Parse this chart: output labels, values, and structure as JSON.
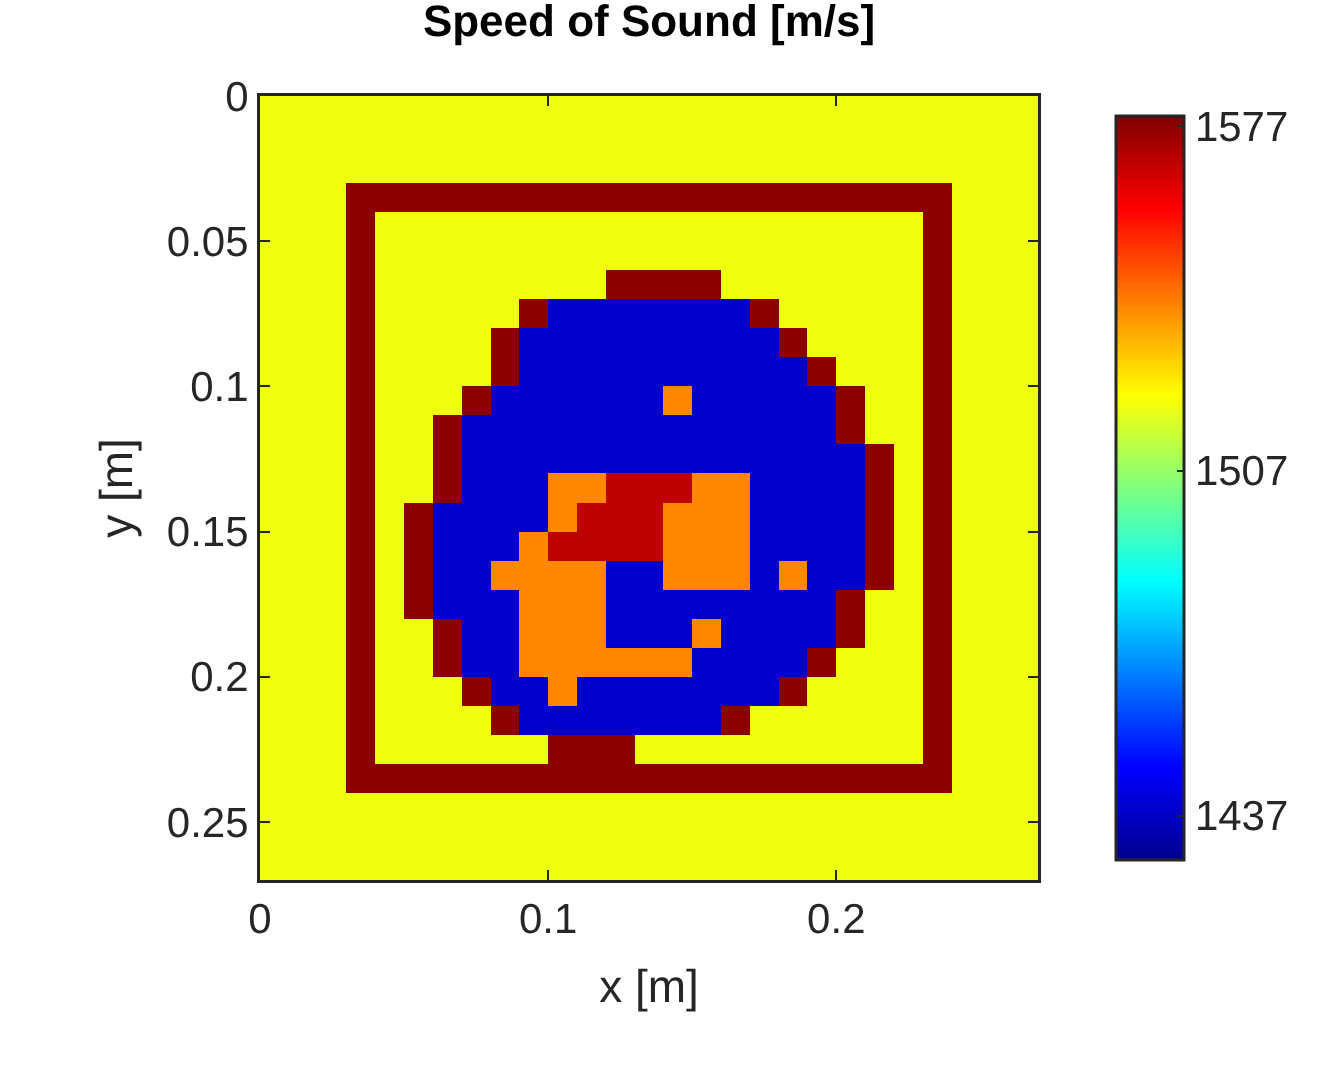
{
  "chart_data": {
    "type": "heatmap",
    "title": "Speed of Sound [m/s]",
    "xlabel": "x [m]",
    "ylabel": "y [m]",
    "x": [
      0.005,
      0.015,
      0.025,
      0.035,
      0.045,
      0.055,
      0.065,
      0.075,
      0.085,
      0.095,
      0.105,
      0.115,
      0.125,
      0.135,
      0.145,
      0.155,
      0.165,
      0.175,
      0.185,
      0.195,
      0.205,
      0.215,
      0.225,
      0.235,
      0.245,
      0.255,
      0.265
    ],
    "y": [
      0.005,
      0.015,
      0.025,
      0.035,
      0.045,
      0.055,
      0.065,
      0.075,
      0.085,
      0.095,
      0.105,
      0.115,
      0.125,
      0.135,
      0.145,
      0.155,
      0.165,
      0.175,
      0.185,
      0.195,
      0.205,
      0.215,
      0.225,
      0.235,
      0.245,
      0.255,
      0.265
    ],
    "xlim": [
      0,
      0.27
    ],
    "ylim": [
      0.27,
      0
    ],
    "xticks": [
      0,
      0.1,
      0.2
    ],
    "yticks": [
      0,
      0.05,
      0.1,
      0.15,
      0.2,
      0.25
    ],
    "clim": [
      1428,
      1579
    ],
    "cticks": [
      1437,
      1507,
      1577
    ],
    "cells": [
      [
        1520,
        1520,
        1520,
        1520,
        1520,
        1520,
        1520,
        1520,
        1520,
        1520,
        1520,
        1520,
        1520,
        1520,
        1520,
        1520,
        1520,
        1520,
        1520,
        1520,
        1520,
        1520,
        1520,
        1520,
        1520,
        1520,
        1520
      ],
      [
        1520,
        1520,
        1520,
        1520,
        1520,
        1520,
        1520,
        1520,
        1520,
        1520,
        1520,
        1520,
        1520,
        1520,
        1520,
        1520,
        1520,
        1520,
        1520,
        1520,
        1520,
        1520,
        1520,
        1520,
        1520,
        1520,
        1520
      ],
      [
        1520,
        1520,
        1520,
        1520,
        1520,
        1520,
        1520,
        1520,
        1520,
        1520,
        1520,
        1520,
        1520,
        1520,
        1520,
        1520,
        1520,
        1520,
        1520,
        1520,
        1520,
        1520,
        1520,
        1520,
        1520,
        1520,
        1520
      ],
      [
        1520,
        1520,
        1520,
        1577,
        1577,
        1577,
        1577,
        1577,
        1577,
        1577,
        1577,
        1577,
        1577,
        1577,
        1577,
        1577,
        1577,
        1577,
        1577,
        1577,
        1577,
        1577,
        1577,
        1577,
        1520,
        1520,
        1520
      ],
      [
        1520,
        1520,
        1520,
        1577,
        1520,
        1520,
        1520,
        1520,
        1520,
        1520,
        1520,
        1520,
        1520,
        1520,
        1520,
        1520,
        1520,
        1520,
        1520,
        1520,
        1520,
        1520,
        1520,
        1577,
        1520,
        1520,
        1520
      ],
      [
        1520,
        1520,
        1520,
        1577,
        1520,
        1520,
        1520,
        1520,
        1520,
        1520,
        1520,
        1520,
        1520,
        1520,
        1520,
        1520,
        1520,
        1520,
        1520,
        1520,
        1520,
        1520,
        1520,
        1577,
        1520,
        1520,
        1520
      ],
      [
        1520,
        1520,
        1520,
        1577,
        1520,
        1520,
        1520,
        1520,
        1520,
        1520,
        1520,
        1520,
        1577,
        1577,
        1577,
        1577,
        1520,
        1520,
        1520,
        1520,
        1520,
        1520,
        1520,
        1577,
        1520,
        1520,
        1520
      ],
      [
        1520,
        1520,
        1520,
        1577,
        1520,
        1520,
        1520,
        1520,
        1520,
        1577,
        1438,
        1438,
        1438,
        1438,
        1438,
        1438,
        1438,
        1577,
        1520,
        1520,
        1520,
        1520,
        1520,
        1577,
        1520,
        1520,
        1520
      ],
      [
        1520,
        1520,
        1520,
        1577,
        1520,
        1520,
        1520,
        1520,
        1577,
        1438,
        1438,
        1438,
        1438,
        1438,
        1438,
        1438,
        1438,
        1438,
        1577,
        1520,
        1520,
        1520,
        1520,
        1577,
        1520,
        1520,
        1520
      ],
      [
        1520,
        1520,
        1520,
        1577,
        1520,
        1520,
        1520,
        1520,
        1577,
        1438,
        1438,
        1438,
        1438,
        1438,
        1438,
        1438,
        1438,
        1438,
        1438,
        1577,
        1520,
        1520,
        1520,
        1577,
        1520,
        1520,
        1520
      ],
      [
        1520,
        1520,
        1520,
        1577,
        1520,
        1520,
        1520,
        1577,
        1438,
        1438,
        1438,
        1438,
        1438,
        1438,
        1540,
        1438,
        1438,
        1438,
        1438,
        1438,
        1577,
        1520,
        1520,
        1577,
        1520,
        1520,
        1520
      ],
      [
        1520,
        1520,
        1520,
        1577,
        1520,
        1520,
        1577,
        1438,
        1438,
        1438,
        1438,
        1438,
        1438,
        1438,
        1438,
        1438,
        1438,
        1438,
        1438,
        1438,
        1577,
        1520,
        1520,
        1577,
        1520,
        1520,
        1520
      ],
      [
        1520,
        1520,
        1520,
        1577,
        1520,
        1520,
        1577,
        1438,
        1438,
        1438,
        1438,
        1438,
        1438,
        1438,
        1438,
        1438,
        1438,
        1438,
        1438,
        1438,
        1438,
        1577,
        1520,
        1577,
        1520,
        1520,
        1520
      ],
      [
        1520,
        1520,
        1520,
        1577,
        1520,
        1520,
        1577,
        1438,
        1438,
        1438,
        1540,
        1540,
        1570,
        1570,
        1570,
        1540,
        1540,
        1438,
        1438,
        1438,
        1438,
        1577,
        1520,
        1577,
        1520,
        1520,
        1520
      ],
      [
        1520,
        1520,
        1520,
        1577,
        1520,
        1577,
        1438,
        1438,
        1438,
        1438,
        1540,
        1570,
        1570,
        1570,
        1540,
        1540,
        1540,
        1438,
        1438,
        1438,
        1438,
        1577,
        1520,
        1577,
        1520,
        1520,
        1520
      ],
      [
        1520,
        1520,
        1520,
        1577,
        1520,
        1577,
        1438,
        1438,
        1438,
        1540,
        1570,
        1570,
        1570,
        1570,
        1540,
        1540,
        1540,
        1438,
        1438,
        1438,
        1438,
        1577,
        1520,
        1577,
        1520,
        1520,
        1520
      ],
      [
        1520,
        1520,
        1520,
        1577,
        1520,
        1577,
        1438,
        1438,
        1540,
        1540,
        1540,
        1540,
        1438,
        1438,
        1540,
        1540,
        1540,
        1438,
        1540,
        1438,
        1438,
        1577,
        1520,
        1577,
        1520,
        1520,
        1520
      ],
      [
        1520,
        1520,
        1520,
        1577,
        1520,
        1577,
        1438,
        1438,
        1438,
        1540,
        1540,
        1540,
        1438,
        1438,
        1438,
        1438,
        1438,
        1438,
        1438,
        1438,
        1577,
        1520,
        1520,
        1577,
        1520,
        1520,
        1520
      ],
      [
        1520,
        1520,
        1520,
        1577,
        1520,
        1520,
        1577,
        1438,
        1438,
        1540,
        1540,
        1540,
        1438,
        1438,
        1438,
        1540,
        1438,
        1438,
        1438,
        1438,
        1577,
        1520,
        1520,
        1577,
        1520,
        1520,
        1520
      ],
      [
        1520,
        1520,
        1520,
        1577,
        1520,
        1520,
        1577,
        1438,
        1438,
        1540,
        1540,
        1540,
        1540,
        1540,
        1540,
        1438,
        1438,
        1438,
        1438,
        1577,
        1520,
        1520,
        1520,
        1577,
        1520,
        1520,
        1520
      ],
      [
        1520,
        1520,
        1520,
        1577,
        1520,
        1520,
        1520,
        1577,
        1438,
        1438,
        1540,
        1438,
        1438,
        1438,
        1438,
        1438,
        1438,
        1438,
        1577,
        1520,
        1520,
        1520,
        1520,
        1577,
        1520,
        1520,
        1520
      ],
      [
        1520,
        1520,
        1520,
        1577,
        1520,
        1520,
        1520,
        1520,
        1577,
        1438,
        1438,
        1438,
        1438,
        1438,
        1438,
        1438,
        1577,
        1520,
        1520,
        1520,
        1520,
        1520,
        1520,
        1577,
        1520,
        1520,
        1520
      ],
      [
        1520,
        1520,
        1520,
        1577,
        1520,
        1520,
        1520,
        1520,
        1520,
        1520,
        1577,
        1577,
        1577,
        1520,
        1520,
        1520,
        1520,
        1520,
        1520,
        1520,
        1520,
        1520,
        1520,
        1577,
        1520,
        1520,
        1520
      ],
      [
        1520,
        1520,
        1520,
        1577,
        1577,
        1577,
        1577,
        1577,
        1577,
        1577,
        1577,
        1577,
        1577,
        1577,
        1577,
        1577,
        1577,
        1577,
        1577,
        1577,
        1577,
        1577,
        1577,
        1577,
        1520,
        1520,
        1520
      ],
      [
        1520,
        1520,
        1520,
        1520,
        1520,
        1520,
        1520,
        1520,
        1520,
        1520,
        1520,
        1520,
        1520,
        1520,
        1520,
        1520,
        1520,
        1520,
        1520,
        1520,
        1520,
        1520,
        1520,
        1520,
        1520,
        1520,
        1520
      ],
      [
        1520,
        1520,
        1520,
        1520,
        1520,
        1520,
        1520,
        1520,
        1520,
        1520,
        1520,
        1520,
        1520,
        1520,
        1520,
        1520,
        1520,
        1520,
        1520,
        1520,
        1520,
        1520,
        1520,
        1520,
        1520,
        1520,
        1520
      ],
      [
        1520,
        1520,
        1520,
        1520,
        1520,
        1520,
        1520,
        1520,
        1520,
        1520,
        1520,
        1520,
        1520,
        1520,
        1520,
        1520,
        1520,
        1520,
        1520,
        1520,
        1520,
        1520,
        1520,
        1520,
        1520,
        1520,
        1520
      ]
    ]
  }
}
